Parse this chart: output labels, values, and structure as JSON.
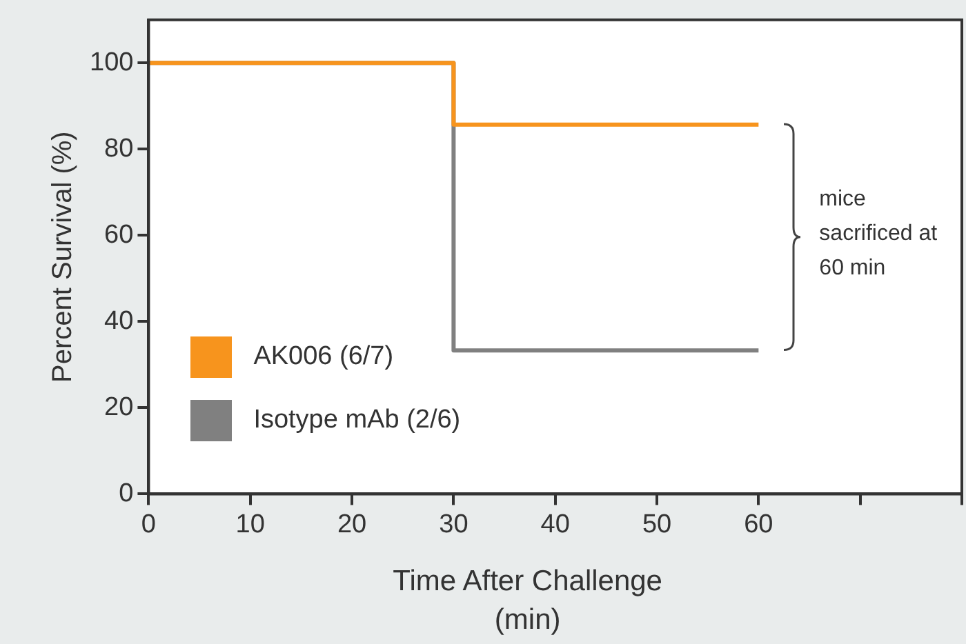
{
  "chart_data": {
    "type": "step",
    "xlabel": "Time After Challenge (min)",
    "ylabel": "Percent Survival (%)",
    "x": [
      0,
      30,
      60
    ],
    "series": [
      {
        "name": "Isotype mAb (2/6)",
        "color": "#808080",
        "values": [
          100,
          33.3,
          33.3
        ]
      },
      {
        "name": "AK006 (6/7)",
        "color": "#f7941d",
        "values": [
          100,
          85.7,
          85.7
        ]
      }
    ],
    "xlim": [
      0,
      80
    ],
    "xticks": [
      0,
      10,
      20,
      30,
      40,
      50,
      60,
      {
        "value": 70,
        "label": null
      },
      {
        "value": 80,
        "label": null
      }
    ],
    "ylim": [
      0,
      110
    ],
    "yticks": [
      0,
      20,
      40,
      60,
      80,
      100
    ],
    "grid": false,
    "legend": "bottom left",
    "annotations": [
      "mice sacrificed at 60 min"
    ]
  }
}
